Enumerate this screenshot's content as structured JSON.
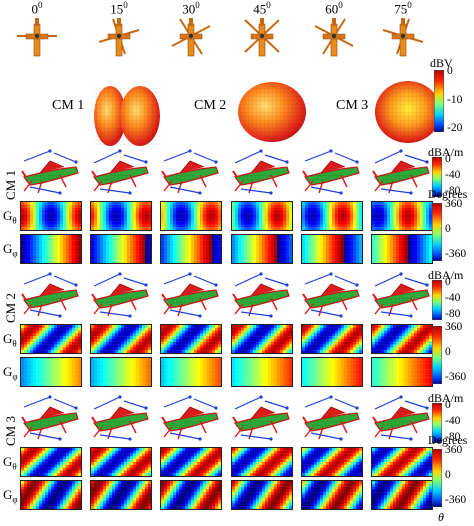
{
  "angles": [
    "0",
    "15",
    "30",
    "45",
    "60",
    "75"
  ],
  "angle_unit": "0",
  "patterns": {
    "labels": [
      "CM 1",
      "CM 2",
      "CM 3"
    ],
    "colorbar": {
      "title": "dBV",
      "ticks": [
        "0",
        "-10",
        "-20"
      ]
    }
  },
  "modes": [
    {
      "label": "CM 1",
      "current_cbar": {
        "title": "dBA/m",
        "ticks": [
          "0",
          "-40",
          "-80"
        ]
      },
      "phase_cbar": {
        "title": "Degrees",
        "ticks": [
          "360",
          "0",
          "-360"
        ]
      }
    },
    {
      "label": "CM 2",
      "current_cbar": {
        "title": "dBA/m",
        "ticks": [
          "0",
          "-40",
          "-80"
        ]
      },
      "phase_cbar": {
        "ticks": [
          "360",
          "0",
          "-360"
        ]
      }
    },
    {
      "label": "CM 3",
      "current_cbar": {
        "title": "dBA/m",
        "ticks": [
          "0",
          "-40",
          "-80"
        ]
      },
      "phase_cbar": {
        "title": "Degrees",
        "ticks": [
          "360",
          "0",
          "-360"
        ]
      }
    }
  ],
  "g_theta": "G",
  "g_theta_sub": "θ",
  "g_phi": "G",
  "g_phi_sub": "φ",
  "theta_symbol": "θ",
  "colors": {
    "jet_red": "#d7191c",
    "jet_yellow": "#fdd835",
    "jet_cyan": "#2bd4e0",
    "jet_blue": "#1a2fbf"
  }
}
